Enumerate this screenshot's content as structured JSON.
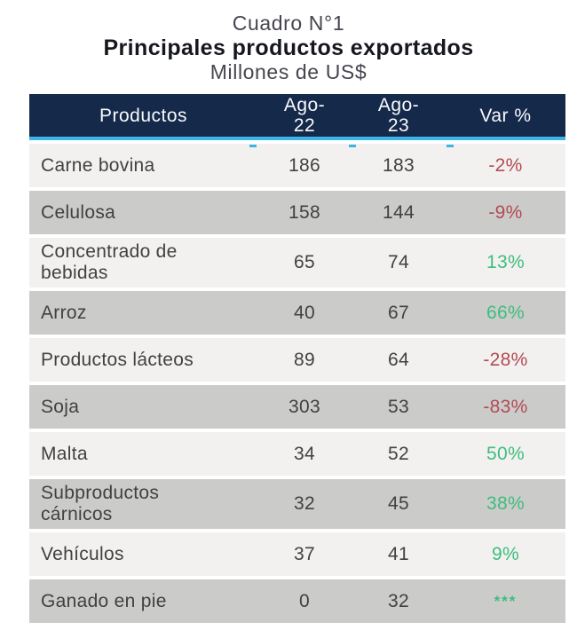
{
  "title": {
    "caption": "Cuadro N°1",
    "main": "Principales productos exportados",
    "unit": "Millones de US$"
  },
  "colors": {
    "header_bg": "#15294a",
    "accent_cyan": "#3cb4e5",
    "row_light": "#f2f1ef",
    "row_dark": "#cbcbca",
    "body_text": "#414141",
    "negative": "#b34b55",
    "positive": "#3ebd7e"
  },
  "table": {
    "header": {
      "col_product": "Productos",
      "col_ago22_line1": "Ago-",
      "col_ago22_line2": "22",
      "col_ago23_line1": "Ago-",
      "col_ago23_line2": "23",
      "col_var": "Var %"
    },
    "rows": [
      {
        "product_lines": [
          "Carne bovina"
        ],
        "ago22": "186",
        "ago23": "183",
        "var": "-2%",
        "trend": "negative"
      },
      {
        "product_lines": [
          "Celulosa"
        ],
        "ago22": "158",
        "ago23": "144",
        "var": "-9%",
        "trend": "negative"
      },
      {
        "product_lines": [
          "Concentrado de",
          "bebidas"
        ],
        "ago22": "65",
        "ago23": "74",
        "var": "13%",
        "trend": "positive"
      },
      {
        "product_lines": [
          "Arroz"
        ],
        "ago22": "40",
        "ago23": "67",
        "var": "66%",
        "trend": "positive"
      },
      {
        "product_lines": [
          "Productos lácteos"
        ],
        "ago22": "89",
        "ago23": "64",
        "var": "-28%",
        "trend": "negative"
      },
      {
        "product_lines": [
          "Soja"
        ],
        "ago22": "303",
        "ago23": "53",
        "var": "-83%",
        "trend": "negative"
      },
      {
        "product_lines": [
          "Malta"
        ],
        "ago22": "34",
        "ago23": "52",
        "var": "50%",
        "trend": "positive"
      },
      {
        "product_lines": [
          "Subproductos",
          "cárnicos"
        ],
        "ago22": "32",
        "ago23": "45",
        "var": "38%",
        "trend": "positive"
      },
      {
        "product_lines": [
          "Vehículos"
        ],
        "ago22": "37",
        "ago23": "41",
        "var": "9%",
        "trend": "positive"
      },
      {
        "product_lines": [
          "Ganado en pie"
        ],
        "ago22": "0",
        "ago23": "32",
        "var": "***",
        "trend": "positive"
      }
    ]
  },
  "chart_data": {
    "type": "table",
    "title": "Cuadro N°1 — Principales productos exportados",
    "unit": "Millones de US$",
    "columns": [
      "Productos",
      "Ago-22",
      "Ago-23",
      "Var %"
    ],
    "rows": [
      [
        "Carne bovina",
        186,
        183,
        "-2%"
      ],
      [
        "Celulosa",
        158,
        144,
        "-9%"
      ],
      [
        "Concentrado de bebidas",
        65,
        74,
        "13%"
      ],
      [
        "Arroz",
        40,
        67,
        "66%"
      ],
      [
        "Productos lácteos",
        89,
        64,
        "-28%"
      ],
      [
        "Soja",
        303,
        53,
        "-83%"
      ],
      [
        "Malta",
        34,
        52,
        "50%"
      ],
      [
        "Subproductos cárnicos",
        32,
        45,
        "38%"
      ],
      [
        "Vehículos",
        37,
        41,
        "9%"
      ],
      [
        "Ganado en pie",
        0,
        32,
        "***"
      ]
    ]
  }
}
